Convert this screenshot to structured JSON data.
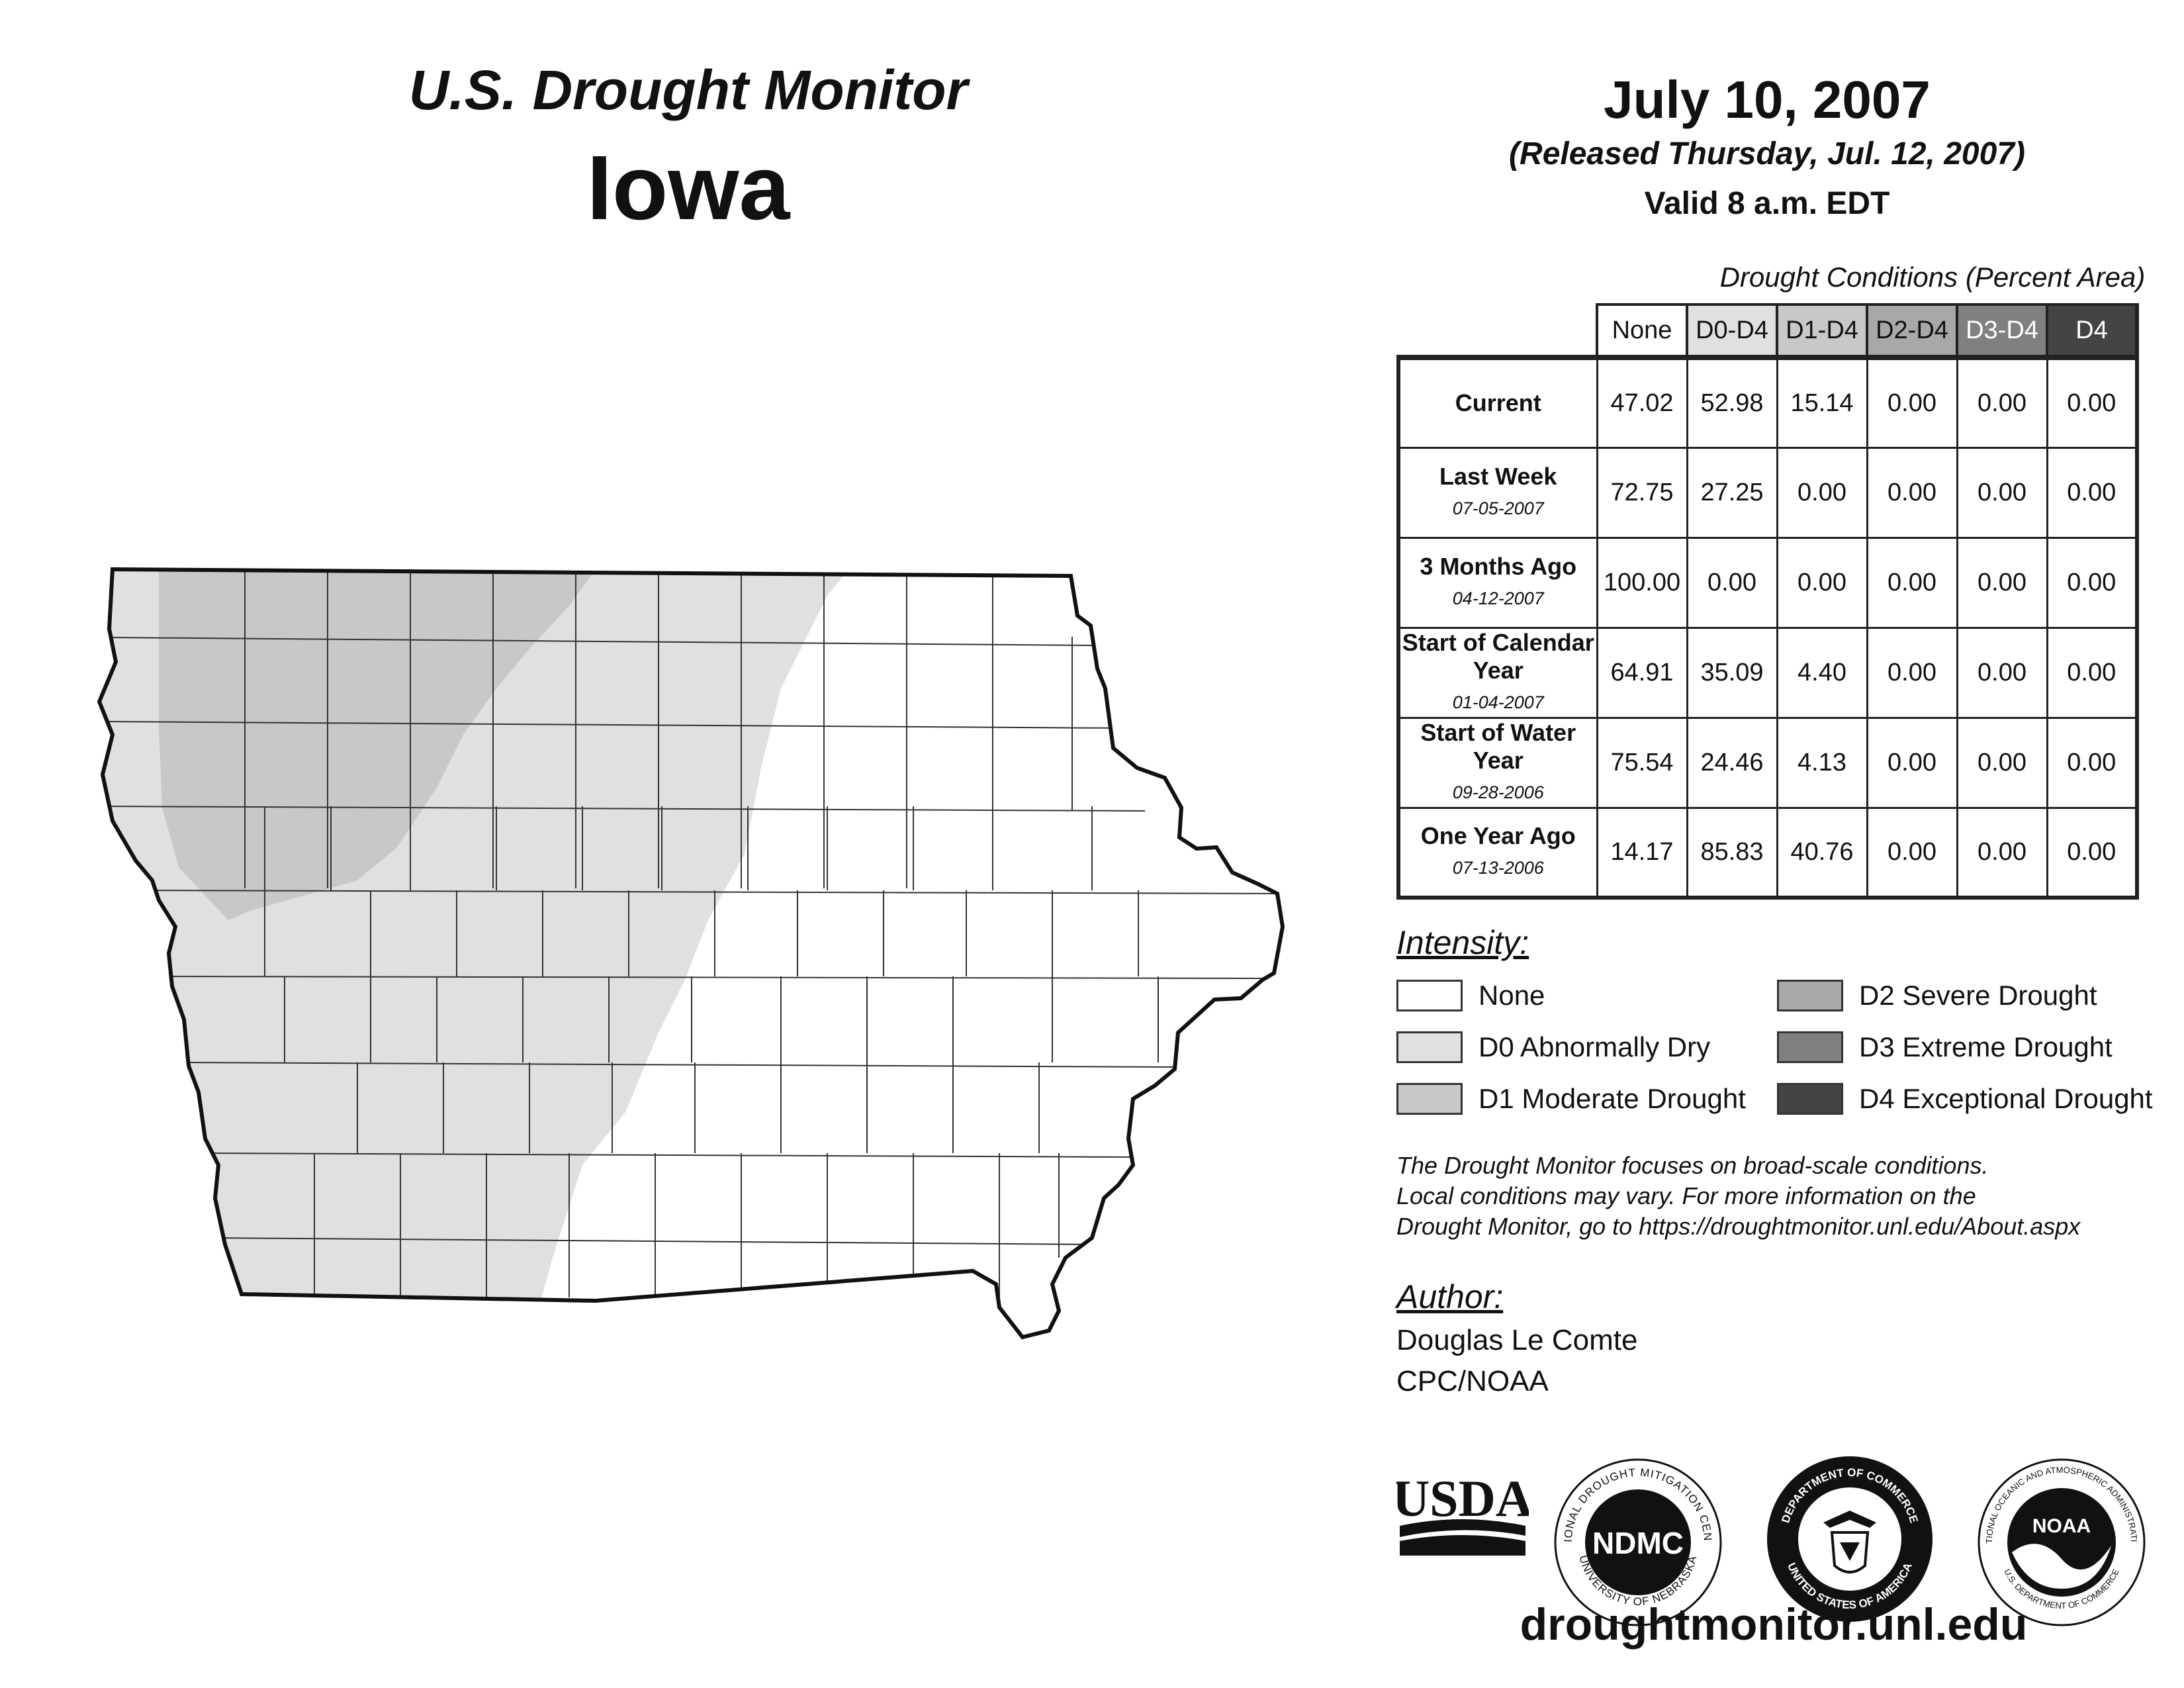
{
  "header": {
    "monitor_title": "U.S. Drought Monitor",
    "state": "Iowa",
    "date": "July 10, 2007",
    "released": "(Released Thursday, Jul. 12, 2007)",
    "valid": "Valid 8 a.m. EDT"
  },
  "table": {
    "caption": "Drought Conditions (Percent Area)",
    "columns": [
      "None",
      "D0-D4",
      "D1-D4",
      "D2-D4",
      "D3-D4",
      "D4"
    ],
    "column_colors": [
      "#ffffff",
      "#e0e0e0",
      "#c8c8c8",
      "#a8a8a8",
      "#808080",
      "#444444"
    ],
    "rows": [
      {
        "label": "Current",
        "date": "",
        "values": [
          "47.02",
          "52.98",
          "15.14",
          "0.00",
          "0.00",
          "0.00"
        ]
      },
      {
        "label": "Last Week",
        "date": "07-05-2007",
        "values": [
          "72.75",
          "27.25",
          "0.00",
          "0.00",
          "0.00",
          "0.00"
        ]
      },
      {
        "label": "3 Months Ago",
        "date": "04-12-2007",
        "values": [
          "100.00",
          "0.00",
          "0.00",
          "0.00",
          "0.00",
          "0.00"
        ]
      },
      {
        "label": "Start of Calendar Year",
        "date": "01-04-2007",
        "values": [
          "64.91",
          "35.09",
          "4.40",
          "0.00",
          "0.00",
          "0.00"
        ]
      },
      {
        "label": "Start of Water Year",
        "date": "09-28-2006",
        "values": [
          "75.54",
          "24.46",
          "4.13",
          "0.00",
          "0.00",
          "0.00"
        ]
      },
      {
        "label": "One Year Ago",
        "date": "07-13-2006",
        "values": [
          "14.17",
          "85.83",
          "40.76",
          "0.00",
          "0.00",
          "0.00"
        ]
      }
    ]
  },
  "legend": {
    "title": "Intensity:",
    "items": [
      {
        "label": "None",
        "color": "#ffffff"
      },
      {
        "label": "D0 Abnormally Dry",
        "color": "#e0e0e0"
      },
      {
        "label": "D1 Moderate Drought",
        "color": "#c8c8c8"
      },
      {
        "label": "D2 Severe Drought",
        "color": "#a8a8a8"
      },
      {
        "label": "D3 Extreme Drought",
        "color": "#808080"
      },
      {
        "label": "D4 Exceptional Drought",
        "color": "#444444"
      }
    ]
  },
  "disclaimer": {
    "line1": "The Drought Monitor focuses on broad-scale conditions.",
    "line2": "Local conditions may vary. For more information on the",
    "line3": "Drought Monitor, go to https://droughtmonitor.unl.edu/About.aspx"
  },
  "author": {
    "title": "Author:",
    "name": "Douglas Le Comte",
    "org": "CPC/NOAA"
  },
  "logos": {
    "usda": "USDA",
    "ndmc": "NDMC",
    "ndmc_ring_top": "NATIONAL DROUGHT MITIGATION CENTER",
    "ndmc_ring_bottom": "UNIVERSITY OF NEBRASKA",
    "commerce_ring_top": "DEPARTMENT OF COMMERCE",
    "commerce_ring_bottom": "UNITED STATES OF AMERICA",
    "noaa": "NOAA",
    "noaa_ring_top": "NATIONAL OCEANIC AND ATMOSPHERIC ADMINISTRATION",
    "noaa_ring_bottom": "U.S. DEPARTMENT OF COMMERCE"
  },
  "website": "droughtmonitor.unl.edu",
  "map": {
    "colors": {
      "none": "#ffffff",
      "d0": "#e0e0e0",
      "d1": "#c8c8c8",
      "outline": "#111111",
      "county": "#333333"
    }
  }
}
